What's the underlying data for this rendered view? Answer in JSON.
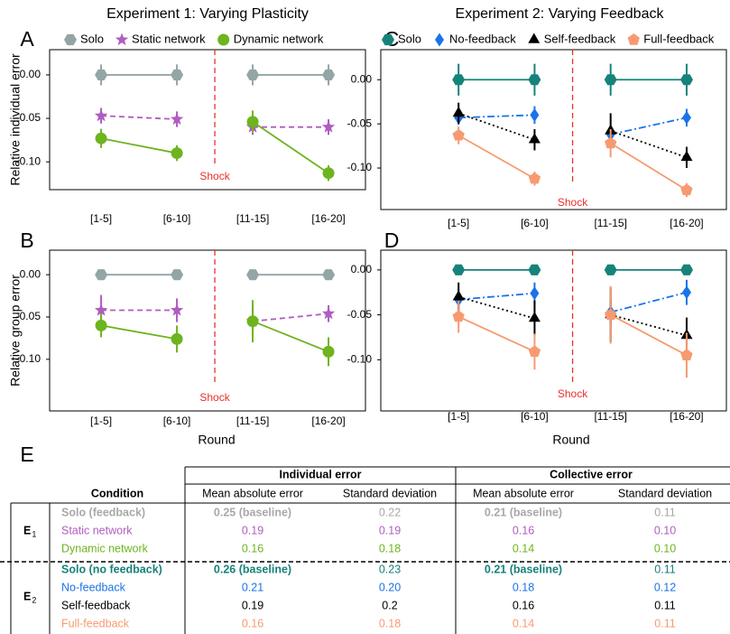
{
  "headings": [
    "Experiment 1: Varying Plasticity",
    "Experiment 2: Varying Feedback"
  ],
  "chart_data": [
    {
      "type": "line",
      "panel": "A",
      "ylabel": "Relative individual error",
      "annotation": "Shock",
      "legend": "top",
      "categories": [
        "[1-5]",
        "[6-10]",
        "[11-15]",
        "[16-20]"
      ],
      "ylim": [
        -0.132,
        0.029
      ],
      "yticks": [
        {
          "value": 0,
          "label": "0.00"
        },
        -0.05,
        {
          "value": -0.1,
          "label": "-0.10"
        }
      ],
      "series": [
        {
          "name": "Solo",
          "color": "#93a5a5",
          "marker": "hexagon",
          "dash": "solid",
          "values": [
            0,
            0,
            0,
            0
          ],
          "errors": [
            0.012,
            0.012,
            0.012,
            0.012
          ]
        },
        {
          "name": "Static network",
          "color": "#b05cc0",
          "marker": "star",
          "dash": "dashed",
          "values": [
            -0.047,
            -0.051,
            -0.06,
            -0.06
          ],
          "errors": [
            0.009,
            0.009,
            0.009,
            0.009
          ]
        },
        {
          "name": "Dynamic network",
          "color": "#6db41e",
          "marker": "circle",
          "dash": "solid",
          "values": [
            -0.073,
            -0.09,
            -0.054,
            -0.113
          ],
          "errors": [
            0.011,
            0.009,
            0.013,
            0.009
          ]
        }
      ]
    },
    {
      "type": "line",
      "panel": "B",
      "ylabel": "Relative group error",
      "xlabel": "Round",
      "annotation": "Shock",
      "categories": [
        "[1-5]",
        "[6-10]",
        "[11-15]",
        "[16-20]"
      ],
      "ylim": [
        -0.161,
        0.029
      ],
      "yticks": [
        {
          "value": 0,
          "label": "0.00"
        },
        -0.05,
        {
          "value": -0.1,
          "label": "-0.10"
        }
      ],
      "series": [
        {
          "name": "Solo",
          "color": "#93a5a5",
          "marker": "hexagon",
          "dash": "solid",
          "values": [
            0,
            0,
            0,
            0
          ],
          "errors": [
            0.004,
            0.004,
            0.004,
            0.004
          ]
        },
        {
          "name": "Static network",
          "color": "#b05cc0",
          "marker": "star",
          "dash": "dashed",
          "values": [
            -0.042,
            -0.042,
            -0.055,
            -0.046
          ],
          "errors": [
            0.018,
            0.014,
            0.016,
            0.01
          ]
        },
        {
          "name": "Dynamic network",
          "color": "#6db41e",
          "marker": "circle",
          "dash": "solid",
          "values": [
            -0.06,
            -0.076,
            -0.055,
            -0.091
          ],
          "errors": [
            0.014,
            0.016,
            0.025,
            0.017
          ]
        }
      ]
    },
    {
      "type": "line",
      "panel": "C",
      "annotation": "Shock",
      "legend": "top",
      "categories": [
        "[1-5]",
        "[6-10]",
        "[11-15]",
        "[16-20]"
      ],
      "ylim": [
        -0.147,
        0.034
      ],
      "yticks": [
        {
          "value": 0,
          "label": "0.00"
        },
        -0.05,
        {
          "value": -0.1,
          "label": "-0.10"
        }
      ],
      "series": [
        {
          "name": "Solo",
          "color": "#16837a",
          "marker": "hexagon",
          "dash": "solid",
          "values": [
            0,
            0,
            0,
            0
          ],
          "errors": [
            0.018,
            0.018,
            0.018,
            0.018
          ]
        },
        {
          "name": "No-feedback",
          "color": "#1a73e8",
          "marker": "diamond",
          "dash": "dashdot",
          "values": [
            -0.043,
            -0.04,
            -0.062,
            -0.043
          ],
          "errors": [
            0.008,
            0.01,
            0.009,
            0.01
          ]
        },
        {
          "name": "Self-feedback",
          "color": "#000000",
          "marker": "triangle",
          "dash": "dotted",
          "values": [
            -0.038,
            -0.068,
            -0.058,
            -0.088
          ],
          "errors": [
            0.012,
            0.012,
            0.02,
            0.012
          ]
        },
        {
          "name": "Full-feedback",
          "color": "#f79a70",
          "marker": "pentagon",
          "dash": "solid",
          "values": [
            -0.063,
            -0.112,
            -0.072,
            -0.125
          ],
          "errors": [
            0.01,
            0.008,
            0.016,
            0.008
          ]
        }
      ]
    },
    {
      "type": "line",
      "panel": "D",
      "xlabel": "Round",
      "annotation": "Shock",
      "categories": [
        "[1-5]",
        "[6-10]",
        "[11-15]",
        "[16-20]"
      ],
      "ylim": [
        -0.157,
        0.022
      ],
      "yticks": [
        {
          "value": 0,
          "label": "0.00"
        },
        -0.05,
        {
          "value": -0.1,
          "label": "-0.10"
        }
      ],
      "series": [
        {
          "name": "Solo",
          "color": "#16837a",
          "marker": "hexagon",
          "dash": "solid",
          "values": [
            0,
            0,
            0,
            0
          ],
          "errors": [
            0.003,
            0.003,
            0.003,
            0.003
          ]
        },
        {
          "name": "No-feedback",
          "color": "#1a73e8",
          "marker": "diamond",
          "dash": "dashdot",
          "values": [
            -0.033,
            -0.026,
            -0.047,
            -0.025
          ],
          "errors": [
            0.012,
            0.012,
            0.014,
            0.014
          ]
        },
        {
          "name": "Self-feedback",
          "color": "#000000",
          "marker": "triangle",
          "dash": "dotted",
          "values": [
            -0.03,
            -0.054,
            -0.05,
            -0.073
          ],
          "errors": [
            0.016,
            0.02,
            0.03,
            0.02
          ]
        },
        {
          "name": "Full-feedback",
          "color": "#f79a70",
          "marker": "pentagon",
          "dash": "solid",
          "values": [
            -0.052,
            -0.091,
            -0.05,
            -0.095
          ],
          "errors": [
            0.018,
            0.02,
            0.032,
            0.025
          ]
        }
      ]
    }
  ],
  "table": {
    "panel": "E",
    "groups": [
      "Individual error",
      "Collective error"
    ],
    "columns": [
      "Condition",
      "Mean absolute error",
      "Standard deviation",
      "Mean absolute error",
      "Standard deviation"
    ],
    "sections": [
      {
        "label": "E",
        "sub": "1",
        "rows": [
          {
            "color": "#a8a8a8",
            "bold": [
              true,
              true,
              false,
              true,
              false
            ],
            "cells": [
              "Solo (feedback)",
              "0.25 (baseline)",
              "0.22",
              "0.21 (baseline)",
              "0.11"
            ]
          },
          {
            "color": "#b05cc0",
            "bold": [
              false,
              false,
              false,
              false,
              false
            ],
            "cells": [
              "Static network",
              "0.19",
              "0.19",
              "0.16",
              "0.10"
            ]
          },
          {
            "color": "#6db41e",
            "bold": [
              false,
              false,
              false,
              false,
              false
            ],
            "cells": [
              "Dynamic network",
              "0.16",
              "0.18",
              "0.14",
              "0.10"
            ]
          }
        ]
      },
      {
        "label": "E",
        "sub": "2",
        "rows": [
          {
            "color": "#16837a",
            "bold": [
              true,
              true,
              false,
              true,
              false
            ],
            "cells": [
              "Solo (no feedback)",
              "0.26 (baseline)",
              "0.23",
              "0.21 (baseline)",
              "0.11"
            ]
          },
          {
            "color": "#1a73e8",
            "bold": [
              false,
              false,
              false,
              false,
              false
            ],
            "cells": [
              "No-feedback",
              "0.21",
              "0.20",
              "0.18",
              "0.12"
            ]
          },
          {
            "color": "#000000",
            "bold": [
              false,
              false,
              false,
              false,
              false
            ],
            "cells": [
              "Self-feedback",
              "0.19",
              "0.2",
              "0.16",
              "0.11"
            ]
          },
          {
            "color": "#f79a70",
            "bold": [
              false,
              false,
              false,
              false,
              false
            ],
            "cells": [
              "Full-feedback",
              "0.16",
              "0.18",
              "0.14",
              "0.11"
            ]
          }
        ]
      }
    ]
  }
}
